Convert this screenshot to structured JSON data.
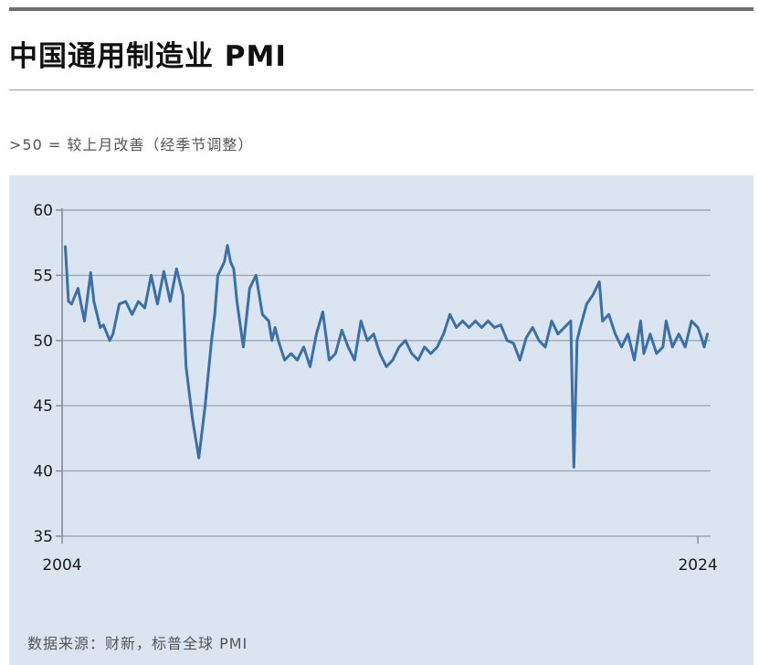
{
  "title": "中国通用制造业 PMI",
  "subtitle": ">50 = 较上月改善（经季节调整）",
  "source": "数据来源：财新，标普全球 PMI",
  "chart_data": {
    "type": "line",
    "title": "中国通用制造业 PMI",
    "xlabel": "",
    "ylabel": "",
    "ylim": [
      35,
      60
    ],
    "yticks": [
      35,
      40,
      45,
      50,
      55,
      60
    ],
    "xlim": [
      2004.0,
      2024.4
    ],
    "xticks": [
      2004,
      2024
    ],
    "grid": true,
    "line_color": "#3a6fa8",
    "series": [
      {
        "x": [
          2004.1,
          2004.2,
          2004.3,
          2004.5,
          2004.7,
          2004.9,
          2005.0,
          2005.2,
          2005.3,
          2005.5,
          2005.6,
          2005.8,
          2006.0,
          2006.2,
          2006.4,
          2006.6,
          2006.8,
          2007.0,
          2007.2,
          2007.4,
          2007.6,
          2007.8,
          2007.9,
          2008.1,
          2008.3,
          2008.5,
          2008.7,
          2008.8,
          2008.9,
          2009.0,
          2009.1,
          2009.2,
          2009.3,
          2009.4,
          2009.5,
          2009.7,
          2009.9,
          2010.1,
          2010.3,
          2010.5,
          2010.6,
          2010.7,
          2010.8,
          2011.0,
          2011.2,
          2011.4,
          2011.6,
          2011.8,
          2012.0,
          2012.2,
          2012.4,
          2012.6,
          2012.8,
          2013.0,
          2013.2,
          2013.4,
          2013.6,
          2013.8,
          2014.0,
          2014.2,
          2014.4,
          2014.6,
          2014.8,
          2015.0,
          2015.2,
          2015.4,
          2015.6,
          2015.8,
          2016.0,
          2016.2,
          2016.4,
          2016.6,
          2016.8,
          2017.0,
          2017.2,
          2017.4,
          2017.6,
          2017.8,
          2018.0,
          2018.2,
          2018.4,
          2018.6,
          2018.8,
          2019.0,
          2019.2,
          2019.4,
          2019.6,
          2019.8,
          2020.0,
          2020.1,
          2020.2,
          2020.3,
          2020.5,
          2020.7,
          2020.9,
          2021.0,
          2021.2,
          2021.4,
          2021.6,
          2021.8,
          2022.0,
          2022.2,
          2022.3,
          2022.5,
          2022.7,
          2022.9,
          2023.0,
          2023.2,
          2023.4,
          2023.6,
          2023.8,
          2024.0,
          2024.1,
          2024.2,
          2024.3
        ],
        "values": [
          57.2,
          53.0,
          52.8,
          54.0,
          51.5,
          55.2,
          53.0,
          51.0,
          51.2,
          50.0,
          50.5,
          52.8,
          53.0,
          52.0,
          53.0,
          52.5,
          55.0,
          52.8,
          55.3,
          53.0,
          55.5,
          53.5,
          48.0,
          44.0,
          41.0,
          45.0,
          50.0,
          52.0,
          55.0,
          55.5,
          56.0,
          57.3,
          56.0,
          55.5,
          53.0,
          49.5,
          54.0,
          55.0,
          52.0,
          51.5,
          50.0,
          51.0,
          50.0,
          48.5,
          49.0,
          48.5,
          49.5,
          48.0,
          50.5,
          52.2,
          48.5,
          49.0,
          50.8,
          49.5,
          48.5,
          51.5,
          50.0,
          50.5,
          49.0,
          48.0,
          48.5,
          49.5,
          50.0,
          49.0,
          48.5,
          49.5,
          49.0,
          49.5,
          50.5,
          52.0,
          51.0,
          51.5,
          51.0,
          51.5,
          51.0,
          51.5,
          51.0,
          51.2,
          50.0,
          49.8,
          48.5,
          50.2,
          51.0,
          50.0,
          49.5,
          51.5,
          50.5,
          51.0,
          51.5,
          40.3,
          50.0,
          51.0,
          52.8,
          53.5,
          54.5,
          51.5,
          52.0,
          50.5,
          49.5,
          50.5,
          48.5,
          51.5,
          49.0,
          50.5,
          49.0,
          49.5,
          51.5,
          49.5,
          50.5,
          49.5,
          51.5,
          51.0,
          50.3,
          49.5,
          50.5
        ]
      }
    ]
  }
}
